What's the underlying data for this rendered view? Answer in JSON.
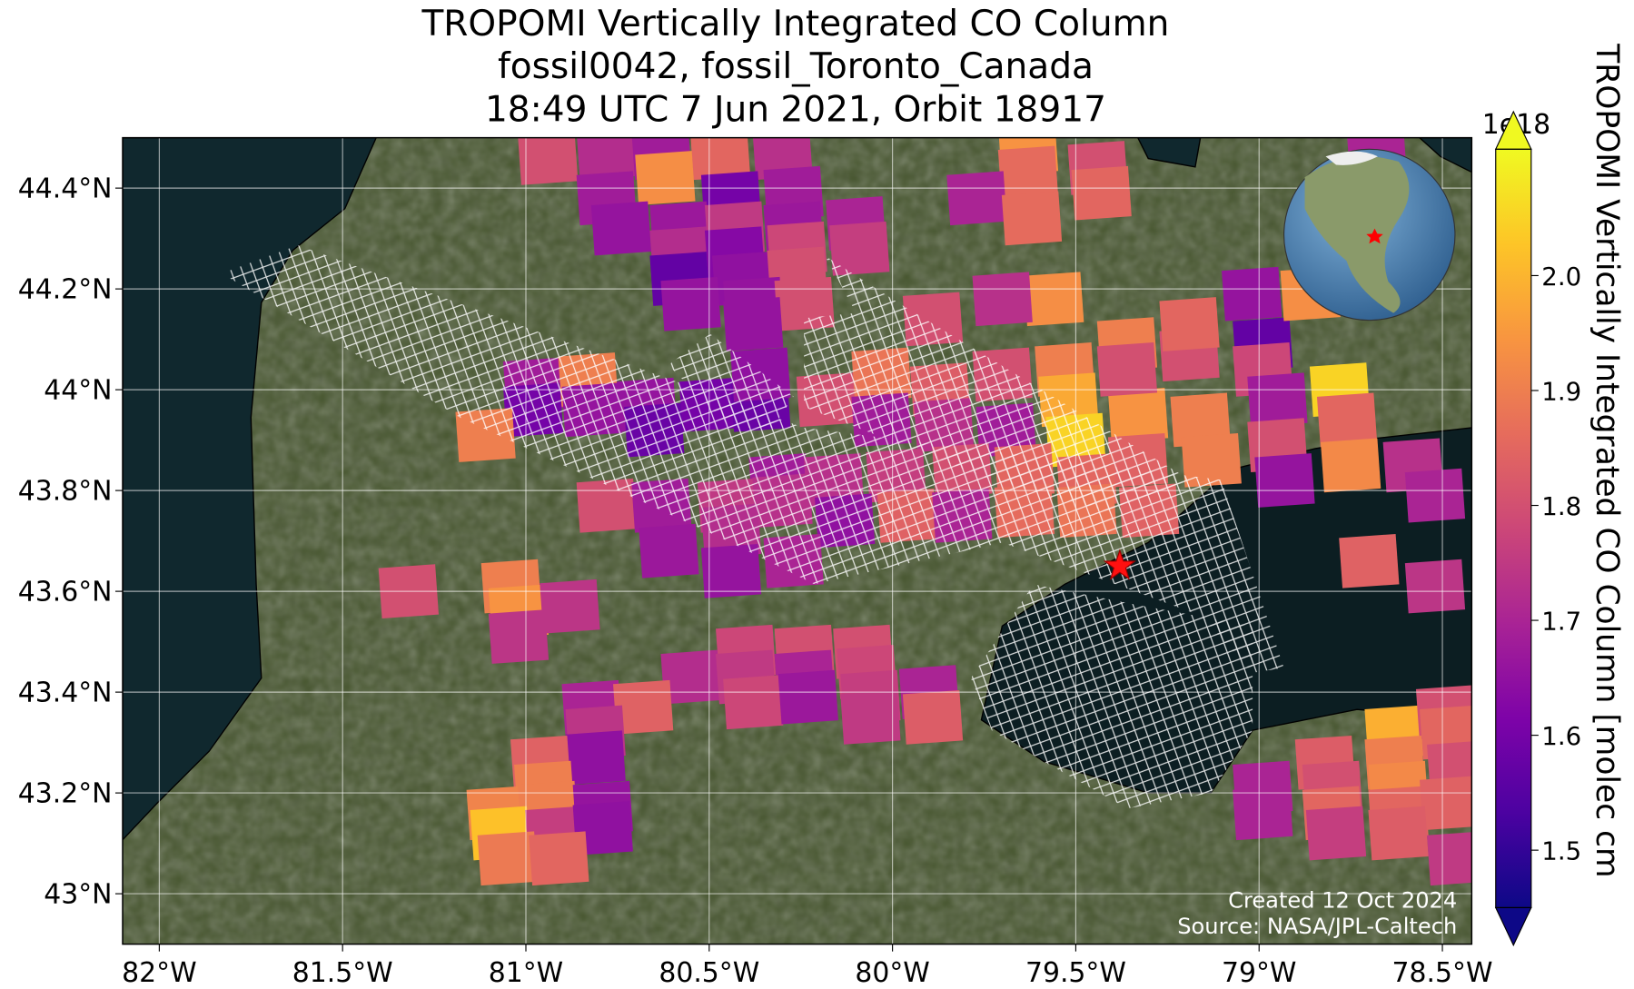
{
  "chart_data": {
    "type": "pixel_map",
    "title": [
      "TROPOMI Vertically Integrated CO Column",
      "fossil0042, fossil_Toronto_Canada",
      "18:49 UTC 7 Jun 2021, Orbit 18917"
    ],
    "xlim": [
      -82.1,
      -78.42
    ],
    "ylim": [
      42.9,
      44.5
    ],
    "xticks": [
      {
        "value": -82,
        "label": "82°W"
      },
      {
        "value": -81.5,
        "label": "81.5°W"
      },
      {
        "value": -81,
        "label": "81°W"
      },
      {
        "value": -80.5,
        "label": "80.5°W"
      },
      {
        "value": -80,
        "label": "80°W"
      },
      {
        "value": -79.5,
        "label": "79.5°W"
      },
      {
        "value": -79,
        "label": "79°W"
      },
      {
        "value": -78.5,
        "label": "78.5°W"
      }
    ],
    "yticks": [
      {
        "value": 43,
        "label": "43°N"
      },
      {
        "value": 43.2,
        "label": "43.2°N"
      },
      {
        "value": 43.4,
        "label": "43.4°N"
      },
      {
        "value": 43.6,
        "label": "43.6°N"
      },
      {
        "value": 43.8,
        "label": "43.8°N"
      },
      {
        "value": 44,
        "label": "44°N"
      },
      {
        "value": 44.2,
        "label": "44.2°N"
      },
      {
        "value": 44.4,
        "label": "44.4°N"
      }
    ],
    "grid": true,
    "colormap": "plasma",
    "clim": [
      1.45,
      2.11
    ],
    "cticks": [
      1.5,
      1.6,
      1.7,
      1.8,
      1.9,
      {
        "value": 2,
        "label": "2.0"
      }
    ],
    "colorbar_offset": "1e18",
    "colorbar_label": "TROPOMI Vertically Integrated CO Column [molec cm",
    "site": {
      "lon": -79.38,
      "lat": 43.65
    },
    "credits": [
      "Created 12 Oct 2024",
      "Source: NASA/JPL-Caltech"
    ],
    "pixels": {
      "lon": [
        -80.94,
        -80.78,
        -80.63,
        -80.47,
        -80.3,
        -80.78,
        -80.62,
        -80.44,
        -80.27,
        -80.74,
        -80.58,
        -80.43,
        -80.27,
        -80.1,
        -80.58,
        -80.43,
        -80.26,
        -80.09,
        -80.58,
        -80.41,
        -80.26,
        -80.55,
        -80.38,
        -80.24,
        -80.38,
        -80.98,
        -80.83,
        -80.98,
        -80.82,
        -80.67,
        -80.5,
        -80.36,
        -80.36,
        -80.65,
        -81.11,
        -80.18,
        -80.03,
        -80.03,
        -79.87,
        -79.7,
        -79.53,
        -79.52,
        -79.86,
        -79.69,
        -79.5,
        -79.33,
        -79.33,
        -80.31,
        -80.16,
        -79.99,
        -79.81,
        -79.64,
        -79.47,
        -80.78,
        -80.63,
        -80.45,
        -80.3,
        -80.13,
        -79.96,
        -79.81,
        -79.64,
        -79.47,
        -79.3,
        -80.61,
        -80.44,
        -80.44,
        -80.27,
        -79.19,
        -79.36,
        -79.19,
        -78.99,
        -79.36,
        -78.99,
        -79.16,
        -79.13,
        -78.95,
        -78.95,
        -78.93,
        -78.78,
        -78.76,
        -78.75,
        -78.58,
        -78.52,
        -78.7,
        -78.52,
        -79.02,
        -78.86,
        -79.56,
        -79.7,
        -79.89,
        -79.63,
        -79.63,
        -79.44,
        -79.43,
        -79.77,
        -79.62,
        -78.68,
        -81.32,
        -81.04,
        -81.02,
        -80.88,
        -81.02,
        -80.4,
        -80.24,
        -80.08,
        -80.55,
        -80.4,
        -80.24,
        -80.07,
        -79.9,
        -80.38,
        -80.23,
        -80.06,
        -79.89,
        -80.06,
        -80.82,
        -80.68,
        -80.81,
        -80.81,
        -80.96,
        -80.95,
        -81.08,
        -80.94,
        -80.79,
        -81.07,
        -80.92,
        -80.79,
        -81.05,
        -80.91,
        -78.63,
        -78.49,
        -78.99,
        -78.82,
        -78.63,
        -78.48,
        -78.8,
        -78.62,
        -78.46,
        -78.99,
        -78.8,
        -78.62,
        -78.48,
        -78.79,
        -78.62,
        -78.46
      ],
      "lat": [
        44.46,
        44.47,
        44.47,
        44.47,
        44.47,
        44.38,
        44.42,
        44.38,
        44.39,
        44.32,
        44.32,
        44.32,
        44.32,
        44.33,
        44.27,
        44.27,
        44.28,
        44.28,
        44.22,
        44.22,
        44.23,
        44.17,
        44.17,
        44.17,
        44.13,
        44.01,
        44.02,
        43.96,
        43.96,
        43.97,
        43.97,
        43.97,
        44.03,
        43.92,
        43.91,
        43.98,
        44.03,
        43.94,
        44.0,
        44.03,
        44.04,
        43.98,
        43.93,
        43.92,
        43.9,
        43.95,
        43.86,
        43.82,
        43.82,
        43.83,
        43.84,
        43.84,
        43.82,
        43.77,
        43.77,
        43.77,
        43.78,
        43.74,
        43.75,
        43.75,
        43.76,
        43.76,
        43.76,
        43.68,
        43.72,
        43.64,
        43.66,
        44.07,
        44.09,
        44.13,
        44.09,
        44.04,
        44.04,
        43.94,
        43.86,
        43.98,
        43.89,
        43.82,
        44.0,
        43.94,
        43.85,
        43.85,
        43.79,
        43.66,
        43.61,
        44.19,
        44.19,
        44.18,
        44.18,
        44.14,
        44.48,
        44.43,
        44.44,
        44.39,
        44.38,
        44.34,
        44.48,
        43.6,
        43.61,
        43.56,
        43.57,
        43.51,
        43.48,
        43.48,
        43.48,
        43.43,
        43.43,
        43.43,
        43.44,
        43.4,
        43.38,
        43.39,
        43.39,
        43.35,
        43.35,
        43.37,
        43.37,
        43.32,
        43.27,
        43.26,
        43.21,
        43.16,
        43.17,
        43.17,
        43.12,
        43.12,
        43.13,
        43.07,
        43.07,
        43.32,
        43.36,
        43.21,
        43.26,
        43.26,
        43.32,
        43.21,
        43.21,
        43.25,
        43.16,
        43.16,
        43.16,
        43.18,
        43.12,
        43.12,
        43.07
      ],
      "values": [
        1.8,
        1.72,
        1.68,
        1.85,
        1.73,
        1.68,
        1.93,
        1.6,
        1.68,
        1.66,
        1.67,
        1.75,
        1.67,
        1.7,
        1.72,
        1.63,
        1.78,
        1.76,
        1.57,
        1.65,
        1.8,
        1.66,
        1.66,
        1.8,
        1.66,
        1.68,
        1.9,
        1.6,
        1.66,
        1.66,
        1.6,
        1.58,
        1.65,
        1.58,
        1.9,
        1.8,
        1.88,
        1.68,
        1.83,
        1.8,
        1.9,
        1.98,
        1.73,
        1.68,
        2.05,
        1.94,
        1.84,
        1.68,
        1.73,
        1.76,
        1.8,
        1.85,
        1.85,
        1.8,
        1.68,
        1.75,
        1.73,
        1.65,
        1.84,
        1.7,
        1.86,
        1.88,
        1.84,
        1.67,
        1.72,
        1.66,
        1.7,
        1.8,
        1.9,
        1.85,
        1.57,
        1.8,
        1.78,
        1.9,
        1.9,
        1.68,
        1.8,
        1.66,
        2.05,
        1.85,
        1.92,
        1.73,
        1.7,
        1.84,
        1.74,
        1.66,
        1.93,
        1.93,
        1.73,
        1.8,
        1.94,
        1.86,
        1.8,
        1.85,
        1.7,
        1.86,
        1.7,
        1.8,
        1.9,
        1.94,
        1.74,
        1.74,
        1.78,
        1.8,
        1.8,
        1.72,
        1.75,
        1.7,
        1.78,
        1.7,
        1.78,
        1.67,
        1.76,
        1.83,
        1.75,
        1.7,
        1.84,
        1.74,
        1.65,
        1.84,
        1.9,
        1.91,
        1.9,
        1.66,
        2.02,
        1.76,
        1.65,
        1.89,
        1.85,
        1.99,
        1.8,
        1.7,
        1.83,
        1.9,
        1.85,
        1.8,
        1.92,
        1.8,
        1.7,
        1.85,
        1.85,
        1.84,
        1.76,
        1.83,
        1.75
      ]
    }
  }
}
